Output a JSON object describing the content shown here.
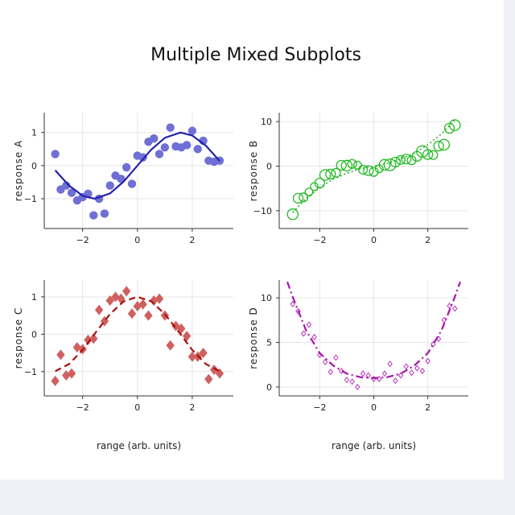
{
  "title": "Multiple Mixed Subplots",
  "chart_data": [
    {
      "type": "scatter",
      "ylabel": "response A",
      "xlabel": "",
      "xlim": [
        -3.4,
        3.5
      ],
      "ylim": [
        -1.9,
        1.6
      ],
      "xticks": [
        -2,
        0,
        2
      ],
      "yticks": [
        -1,
        0,
        1
      ],
      "color": "#2222aa",
      "marker_color": "#6f6fd6",
      "line_style": "solid",
      "series": [
        {
          "kind": "markers",
          "x": [
            -3.0,
            -2.8,
            -2.6,
            -2.4,
            -2.2,
            -2.0,
            -1.8,
            -1.6,
            -1.4,
            -1.2,
            -1.0,
            -0.8,
            -0.6,
            -0.4,
            -0.2,
            0.0,
            0.2,
            0.4,
            0.6,
            0.8,
            1.0,
            1.2,
            1.4,
            1.6,
            1.8,
            2.0,
            2.2,
            2.4,
            2.6,
            2.8,
            3.0
          ],
          "y": [
            0.35,
            -0.72,
            -0.6,
            -0.82,
            -1.05,
            -0.95,
            -0.85,
            -1.5,
            -1.0,
            -1.45,
            -0.6,
            -0.3,
            -0.4,
            -0.05,
            -0.55,
            0.3,
            0.25,
            0.72,
            0.82,
            0.35,
            0.55,
            1.15,
            0.58,
            0.55,
            0.62,
            1.05,
            0.5,
            0.75,
            0.15,
            0.12,
            0.15
          ]
        },
        {
          "kind": "line",
          "x": [
            -3.0,
            -2.5,
            -2.0,
            -1.57,
            -1.0,
            -0.5,
            0.0,
            0.5,
            1.0,
            1.57,
            2.0,
            2.5,
            3.0
          ],
          "y": [
            -0.14,
            -0.6,
            -0.91,
            -1.0,
            -0.84,
            -0.48,
            0.0,
            0.48,
            0.84,
            1.0,
            0.91,
            0.6,
            0.14
          ]
        }
      ]
    },
    {
      "type": "scatter",
      "ylabel": "response B",
      "xlabel": "",
      "xlim": [
        -3.5,
        3.5
      ],
      "ylim": [
        -14,
        12
      ],
      "xticks": [
        -2,
        0,
        2
      ],
      "yticks": [
        -10,
        0,
        10
      ],
      "color": "#22aa22",
      "marker_color": "#22bb22",
      "line_style": "dotted",
      "series": [
        {
          "kind": "open-circles",
          "x": [
            -3.0,
            -2.8,
            -2.6,
            -2.4,
            -2.2,
            -2.0,
            -1.8,
            -1.6,
            -1.4,
            -1.2,
            -1.0,
            -0.8,
            -0.6,
            -0.4,
            -0.2,
            0.0,
            0.2,
            0.4,
            0.6,
            0.8,
            1.0,
            1.2,
            1.4,
            1.6,
            1.8,
            2.0,
            2.2,
            2.4,
            2.6,
            2.8,
            3.0
          ],
          "y": [
            -10.8,
            -7.2,
            -7.0,
            -5.8,
            -4.6,
            -3.8,
            -2.0,
            -1.8,
            -1.5,
            0.2,
            0.1,
            0.5,
            0.2,
            -0.8,
            -1.0,
            -1.3,
            -0.6,
            0.3,
            0.3,
            0.9,
            1.4,
            1.6,
            1.3,
            2.2,
            3.3,
            2.6,
            2.5,
            4.5,
            4.8,
            8.5,
            9.2
          ],
          "size": [
            1.1,
            1.0,
            0.9,
            0.8,
            0.8,
            1.0,
            1.1,
            1.0,
            0.9,
            1.0,
            1.1,
            0.9,
            0.8,
            0.9,
            1.0,
            0.9,
            0.8,
            1.1,
            1.2,
            1.0,
            0.9,
            1.0,
            0.9,
            1.0,
            1.2,
            1.0,
            0.9,
            1.0,
            1.1,
            1.0,
            1.1
          ]
        },
        {
          "kind": "line",
          "x": [
            -3.0,
            -2.5,
            -2.0,
            -1.5,
            -1.0,
            -0.5,
            0.0,
            0.5,
            1.0,
            1.5,
            2.0,
            2.5,
            3.0
          ],
          "y": [
            -10.4,
            -7.2,
            -4.8,
            -2.9,
            -1.6,
            -0.6,
            0.0,
            0.6,
            1.6,
            2.9,
            4.8,
            7.2,
            10.4
          ]
        }
      ]
    },
    {
      "type": "scatter",
      "ylabel": "response C",
      "xlabel": "range (arb. units)",
      "xlim": [
        -3.4,
        3.5
      ],
      "ylim": [
        -1.65,
        1.45
      ],
      "xticks": [
        -2,
        0,
        2
      ],
      "yticks": [
        -1,
        0,
        1
      ],
      "color": "#aa1111",
      "marker_color": "#d06060",
      "line_style": "dashed",
      "series": [
        {
          "kind": "diamonds",
          "x": [
            -3.0,
            -2.8,
            -2.6,
            -2.4,
            -2.2,
            -2.0,
            -1.8,
            -1.6,
            -1.4,
            -1.2,
            -1.0,
            -0.8,
            -0.6,
            -0.4,
            -0.2,
            0.0,
            0.2,
            0.4,
            0.6,
            0.8,
            1.0,
            1.2,
            1.4,
            1.6,
            1.8,
            2.0,
            2.2,
            2.4,
            2.6,
            2.8,
            3.0
          ],
          "y": [
            -1.25,
            -0.55,
            -1.1,
            -1.05,
            -0.35,
            -0.4,
            -0.15,
            -0.12,
            0.65,
            0.35,
            0.9,
            1.0,
            0.95,
            1.15,
            0.55,
            0.75,
            0.8,
            0.5,
            0.9,
            0.95,
            0.5,
            -0.3,
            0.22,
            0.15,
            -0.05,
            -0.6,
            -0.6,
            -0.5,
            -1.2,
            -0.95,
            -1.05
          ]
        },
        {
          "kind": "line",
          "x": [
            -3.0,
            -2.5,
            -2.0,
            -1.5,
            -1.0,
            -0.5,
            0.0,
            0.5,
            1.0,
            1.5,
            2.0,
            2.5,
            3.0
          ],
          "y": [
            -0.99,
            -0.8,
            -0.42,
            0.07,
            0.54,
            0.88,
            1.0,
            0.88,
            0.54,
            0.07,
            -0.42,
            -0.8,
            -0.99
          ]
        }
      ]
    },
    {
      "type": "scatter",
      "ylabel": "response D",
      "xlabel": "range (arb. units)",
      "xlim": [
        -3.5,
        3.5
      ],
      "ylim": [
        -1,
        12
      ],
      "xticks": [
        -2,
        0,
        2
      ],
      "yticks": [
        0,
        5,
        10
      ],
      "color": "#aa11aa",
      "marker_color": "#bb33bb",
      "line_style": "dashdot",
      "series": [
        {
          "kind": "small-open-diamonds",
          "x": [
            -3.0,
            -2.8,
            -2.6,
            -2.4,
            -2.2,
            -2.0,
            -1.8,
            -1.6,
            -1.4,
            -1.2,
            -1.0,
            -0.8,
            -0.6,
            -0.4,
            -0.2,
            0.0,
            0.2,
            0.4,
            0.6,
            0.8,
            1.0,
            1.2,
            1.4,
            1.6,
            1.8,
            2.0,
            2.2,
            2.4,
            2.6,
            2.8,
            3.0
          ],
          "y": [
            9.3,
            8.5,
            6.0,
            7.0,
            5.6,
            3.6,
            2.8,
            1.7,
            3.3,
            1.8,
            0.8,
            0.6,
            0.0,
            1.5,
            1.3,
            0.9,
            0.9,
            1.5,
            2.6,
            0.7,
            1.3,
            2.3,
            1.6,
            2.1,
            1.8,
            2.9,
            4.8,
            5.4,
            7.5,
            9.1,
            8.8
          ]
        },
        {
          "kind": "line",
          "x": [
            -3.2,
            -3.0,
            -2.5,
            -2.0,
            -1.5,
            -1.0,
            -0.5,
            0.0,
            0.5,
            1.0,
            1.5,
            2.0,
            2.5,
            3.0,
            3.2
          ],
          "y": [
            11.8,
            10.1,
            6.3,
            3.8,
            2.4,
            1.5,
            1.1,
            1.0,
            1.1,
            1.5,
            2.4,
            3.8,
            6.3,
            10.1,
            11.8
          ]
        }
      ]
    }
  ]
}
